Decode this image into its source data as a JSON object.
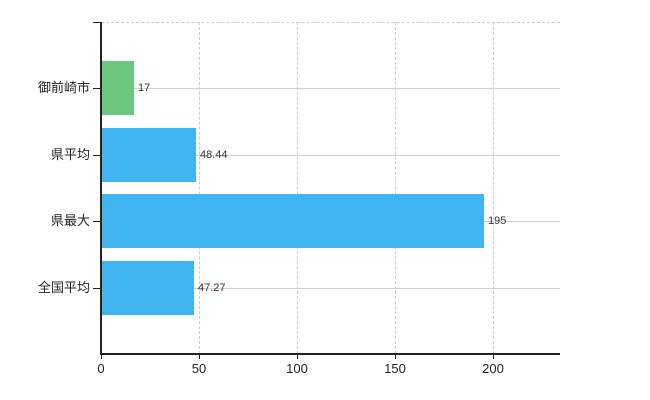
{
  "chart": {
    "background_color": "#ffffff",
    "axis_color": "#222222",
    "vertical_grid_color": "#cccccc",
    "horizontal_grid_color": "#cfd2cf",
    "category_text_color": "#222222",
    "value_text_color": "#333333",
    "title": "",
    "legend": "none"
  },
  "chart_data": {
    "type": "bar",
    "orientation": "horizontal",
    "title": "",
    "xlabel": "",
    "ylabel": "",
    "categories": [
      "御前崎市",
      "県平均",
      "県最大",
      "全国平均"
    ],
    "values": [
      17,
      48.44,
      195,
      47.27
    ],
    "value_labels": [
      "17",
      "48.44",
      "195",
      "47.27"
    ],
    "bar_colors": [
      "#6cc87e",
      "#41b5f0",
      "#41b5f0",
      "#41b5f0"
    ],
    "x_ticks": [
      0,
      50,
      100,
      150,
      200
    ],
    "x_tick_labels": [
      "0",
      "50",
      "100",
      "150",
      "200"
    ],
    "xlim": [
      0,
      234
    ],
    "grid": {
      "vertical": "dashed at each x tick",
      "horizontal": "solid line through each category center",
      "top_border": "dashed"
    }
  }
}
